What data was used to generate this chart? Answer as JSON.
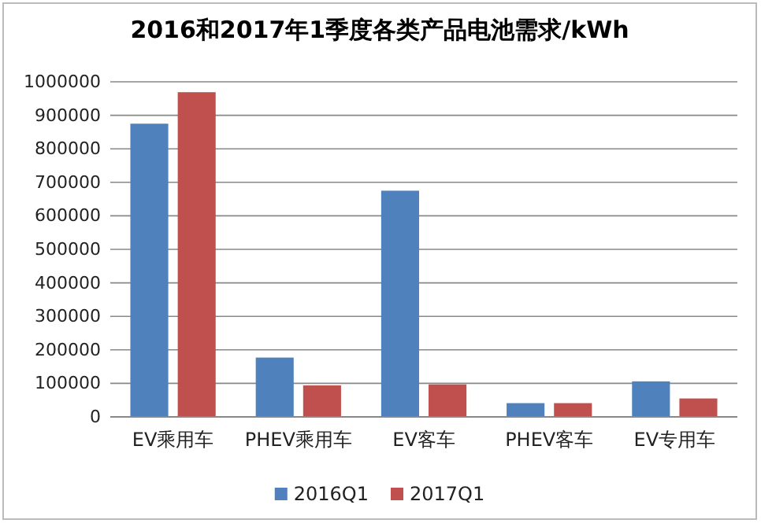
{
  "chart_data": {
    "type": "bar",
    "title": "2016和2017年1季度各类产品电池需求/kWh",
    "categories": [
      "EV乘用车",
      "PHEV乘用车",
      "EV客车",
      "PHEV客车",
      "EV专用车"
    ],
    "series": [
      {
        "name": "2016Q1",
        "color": "#4f81bd",
        "values": [
          875000,
          177000,
          675000,
          41000,
          106000
        ]
      },
      {
        "name": "2017Q1",
        "color": "#c0504d",
        "values": [
          969000,
          94000,
          97000,
          41000,
          55000
        ]
      }
    ],
    "ylim": [
      0,
      1000000
    ],
    "yticks": [
      0,
      100000,
      200000,
      300000,
      400000,
      500000,
      600000,
      700000,
      800000,
      900000,
      1000000
    ],
    "grid": "y",
    "legend": "bottom"
  }
}
